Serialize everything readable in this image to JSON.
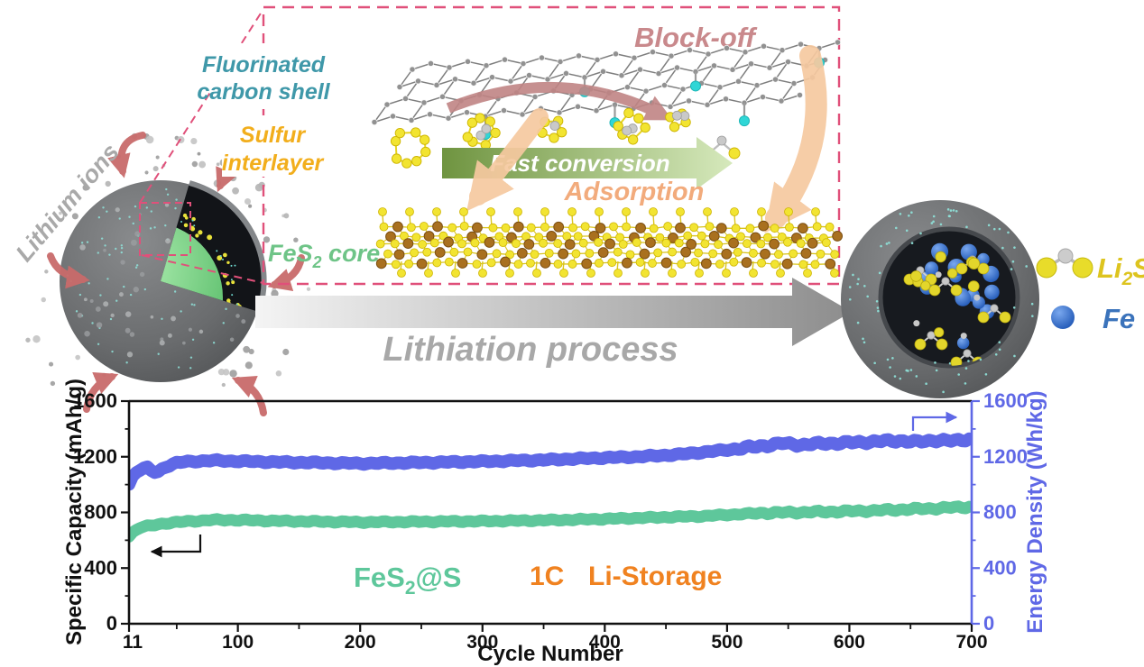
{
  "schematic": {
    "labels": {
      "shell1": "Fluorinated",
      "shell2": "carbon shell",
      "sulfur1": "Sulfur",
      "sulfur2": "interlayer",
      "core_pre": "FeS",
      "core_sub": "2",
      "core_post": " core",
      "block_off": "Block-off",
      "fast_conversion": "Fast conversion",
      "adsorption": "Adsorption",
      "lithium_ions": "Lithium ions",
      "process": "Lithiation process",
      "li2s_pre": "Li",
      "li2s_sub": "2",
      "li2s_post": "S",
      "fe": "Fe"
    },
    "colors": {
      "shell_text": "#3f98a9",
      "sulfur_text": "#f2ae1c",
      "core_text": "#6ec487",
      "block_off_text": "#c9898c",
      "adsorption_text": "#f2ab7c",
      "fast_conversion_text": "#ffffff",
      "lithium_ions_text": "#a9a9a9",
      "process_text": "#a8a8a8",
      "li2s_text": "#ddc41f",
      "fe_text": "#3b73bb",
      "inset_border": "#e0507a",
      "graphene_atom": "#919191",
      "fluorine": "#2fd6d6",
      "sulfur_atom": "#f2e431",
      "iron_atom": "#a9701f",
      "lithium_atom": "#c9c9c9",
      "fe_ball": "#2e6ed4",
      "li2s_ball": "#e3d62b",
      "red_arrow": "#c96b6b",
      "peach_arrow": "#f6c9a0",
      "rose_arrow": "#c08484"
    }
  },
  "chart_data": {
    "type": "line",
    "title": "",
    "xlabel": "Cycle Number",
    "ylabel_left": "Specific Capacity (mAh/g)",
    "ylabel_right": "Energy Density (Wh/kg)",
    "xlim": [
      11,
      700
    ],
    "ylim_left": [
      0,
      1600
    ],
    "ylim_right": [
      0,
      1600
    ],
    "xticks": [
      11,
      100,
      200,
      300,
      400,
      500,
      600,
      700
    ],
    "xminors": [
      50,
      150,
      250,
      350,
      450,
      550,
      650
    ],
    "yticks": [
      0,
      400,
      800,
      1200,
      1600
    ],
    "yminors": [
      200,
      600,
      1000,
      1400
    ],
    "grid": false,
    "axis_color_left": "#111111",
    "axis_color_right": "#5f68e6",
    "legend": [
      {
        "pre": "FeS",
        "sub": "2",
        "post": "@S",
        "color": "#5ec79b"
      },
      {
        "label": "1C",
        "color": "#f08220"
      },
      {
        "label": "Li-Storage",
        "color": "#f08220"
      }
    ],
    "series": [
      {
        "name": "FeS2@S Specific Capacity (mAh/g)",
        "axis": "left",
        "color": "#5ec79b",
        "points": [
          [
            11,
            630
          ],
          [
            15,
            665
          ],
          [
            20,
            692
          ],
          [
            30,
            706
          ],
          [
            40,
            722
          ],
          [
            60,
            736
          ],
          [
            80,
            746
          ],
          [
            100,
            745
          ],
          [
            130,
            739
          ],
          [
            160,
            735
          ],
          [
            200,
            730
          ],
          [
            250,
            733
          ],
          [
            300,
            737
          ],
          [
            350,
            743
          ],
          [
            400,
            753
          ],
          [
            450,
            766
          ],
          [
            480,
            773
          ],
          [
            500,
            783
          ],
          [
            530,
            796
          ],
          [
            560,
            801
          ],
          [
            590,
            806
          ],
          [
            620,
            813
          ],
          [
            650,
            823
          ],
          [
            675,
            831
          ],
          [
            700,
            841
          ]
        ]
      },
      {
        "name": "FeS2@S Energy Density (Wh/kg)",
        "axis": "right",
        "color": "#5f68e6",
        "points": [
          [
            11,
            1005
          ],
          [
            14,
            1060
          ],
          [
            18,
            1098
          ],
          [
            22,
            1116
          ],
          [
            26,
            1120
          ],
          [
            30,
            1094
          ],
          [
            34,
            1086
          ],
          [
            40,
            1126
          ],
          [
            50,
            1156
          ],
          [
            60,
            1166
          ],
          [
            80,
            1173
          ],
          [
            100,
            1168
          ],
          [
            130,
            1162
          ],
          [
            160,
            1158
          ],
          [
            200,
            1152
          ],
          [
            250,
            1158
          ],
          [
            300,
            1166
          ],
          [
            350,
            1177
          ],
          [
            400,
            1193
          ],
          [
            430,
            1201
          ],
          [
            460,
            1216
          ],
          [
            490,
            1241
          ],
          [
            510,
            1259
          ],
          [
            530,
            1279
          ],
          [
            545,
            1296
          ],
          [
            560,
            1286
          ],
          [
            580,
            1296
          ],
          [
            600,
            1301
          ],
          [
            620,
            1309
          ],
          [
            640,
            1316
          ],
          [
            655,
            1306
          ],
          [
            670,
            1319
          ],
          [
            685,
            1313
          ],
          [
            700,
            1331
          ]
        ]
      }
    ]
  }
}
